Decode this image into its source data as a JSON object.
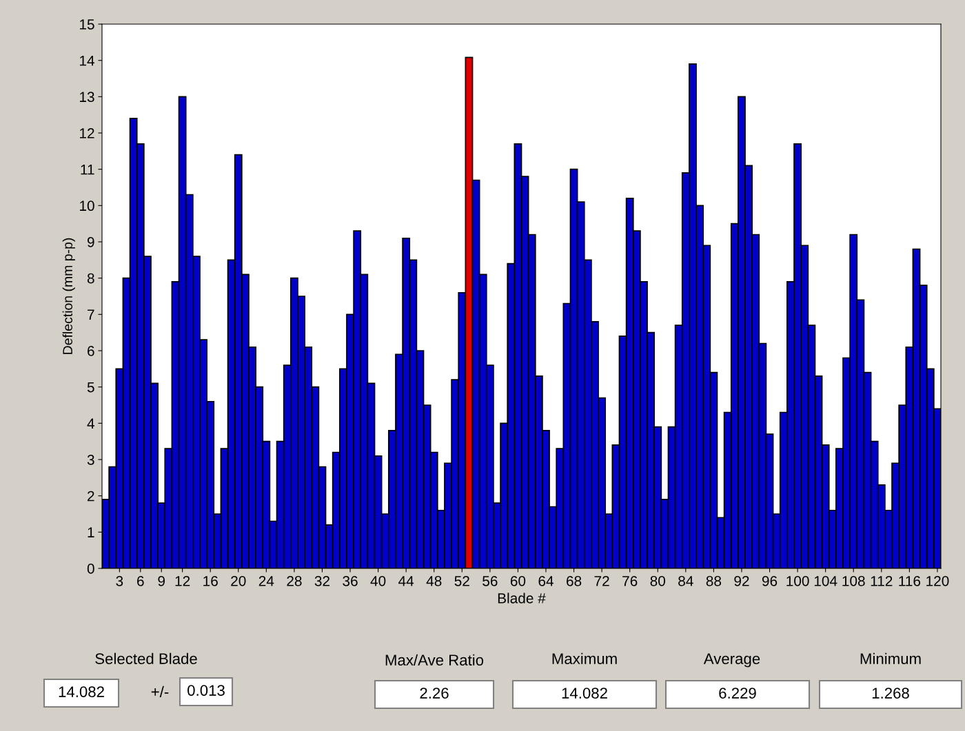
{
  "chart_data": {
    "type": "bar",
    "xlabel": "Blade #",
    "ylabel": "Deflection (mm p-p)",
    "x": [
      1,
      2,
      3,
      4,
      5,
      6,
      7,
      8,
      9,
      10,
      11,
      12,
      13,
      14,
      15,
      16,
      17,
      18,
      19,
      20,
      21,
      22,
      23,
      24,
      25,
      26,
      27,
      28,
      29,
      30,
      31,
      32,
      33,
      34,
      35,
      36,
      37,
      38,
      39,
      40,
      41,
      42,
      43,
      44,
      45,
      46,
      47,
      48,
      49,
      50,
      51,
      52,
      53,
      54,
      55,
      56,
      57,
      58,
      59,
      60,
      61,
      62,
      63,
      64,
      65,
      66,
      67,
      68,
      69,
      70,
      71,
      72,
      73,
      74,
      75,
      76,
      77,
      78,
      79,
      80,
      81,
      82,
      83,
      84,
      85,
      86,
      87,
      88,
      89,
      90,
      91,
      92,
      93,
      94,
      95,
      96,
      97,
      98,
      99,
      100,
      101,
      102,
      103,
      104,
      105,
      106,
      107,
      108,
      109,
      110,
      111,
      112,
      113,
      114,
      115,
      116,
      117,
      118,
      119,
      120
    ],
    "values": [
      1.9,
      2.8,
      5.5,
      8.0,
      12.4,
      11.7,
      8.6,
      5.1,
      1.8,
      3.3,
      7.9,
      13.0,
      10.3,
      8.6,
      6.3,
      4.6,
      1.5,
      3.3,
      8.5,
      11.4,
      8.1,
      6.1,
      5.0,
      3.5,
      1.3,
      3.5,
      5.6,
      8.0,
      7.5,
      6.1,
      5.0,
      2.8,
      1.2,
      3.2,
      5.5,
      7.0,
      9.3,
      8.1,
      5.1,
      3.1,
      1.5,
      3.8,
      5.9,
      9.1,
      8.5,
      6.0,
      4.5,
      3.2,
      1.6,
      2.9,
      5.2,
      7.6,
      14.08,
      10.7,
      8.1,
      5.6,
      1.8,
      4.0,
      8.4,
      11.7,
      10.8,
      9.2,
      5.3,
      3.8,
      1.7,
      3.3,
      7.3,
      11.0,
      10.1,
      8.5,
      6.8,
      4.7,
      1.5,
      3.4,
      6.4,
      10.2,
      9.3,
      7.9,
      6.5,
      3.9,
      1.9,
      3.9,
      6.7,
      10.9,
      13.9,
      10.0,
      8.9,
      5.4,
      1.4,
      4.3,
      9.5,
      13.0,
      11.1,
      9.2,
      6.2,
      3.7,
      1.5,
      4.3,
      7.9,
      11.7,
      8.9,
      6.7,
      5.3,
      3.4,
      1.6,
      3.3,
      5.8,
      9.2,
      7.4,
      5.4,
      3.5,
      2.3,
      1.6,
      2.9,
      4.5,
      6.1,
      8.8,
      7.8,
      5.5,
      4.4
    ],
    "colors": [
      "#0000c8",
      "#0000c8",
      "#0000c8",
      "#0000c8",
      "#0000c8",
      "#0000c8",
      "#0000c8",
      "#0000c8",
      "#0000c8",
      "#0000c8",
      "#0000c8",
      "#0000c8",
      "#0000c8",
      "#0000c8",
      "#0000c8",
      "#0000c8",
      "#0000c8",
      "#0000c8",
      "#0000c8",
      "#0000c8",
      "#0000c8",
      "#0000c8",
      "#0000c8",
      "#0000c8",
      "#0000c8",
      "#0000c8",
      "#0000c8",
      "#0000c8",
      "#0000c8",
      "#0000c8",
      "#0000c8",
      "#0000c8",
      "#0000c8",
      "#0000c8",
      "#0000c8",
      "#0000c8",
      "#0000c8",
      "#0000c8",
      "#0000c8",
      "#0000c8",
      "#0000c8",
      "#0000c8",
      "#0000c8",
      "#0000c8",
      "#0000c8",
      "#0000c8",
      "#0000c8",
      "#0000c8",
      "#0000c8",
      "#0000c8",
      "#0000c8",
      "#0000c8",
      "#e00000",
      "#0000c8",
      "#0000c8",
      "#0000c8",
      "#0000c8",
      "#0000c8",
      "#0000c8",
      "#0000c8",
      "#0000c8",
      "#0000c8",
      "#0000c8",
      "#0000c8",
      "#0000c8",
      "#0000c8",
      "#0000c8",
      "#0000c8",
      "#0000c8",
      "#0000c8",
      "#0000c8",
      "#0000c8",
      "#0000c8",
      "#0000c8",
      "#0000c8",
      "#0000c8",
      "#0000c8",
      "#0000c8",
      "#0000c8",
      "#0000c8",
      "#0000c8",
      "#0000c8",
      "#0000c8",
      "#0000c8",
      "#0000c8",
      "#0000c8",
      "#0000c8",
      "#0000c8",
      "#0000c8",
      "#0000c8",
      "#0000c8",
      "#0000c8",
      "#0000c8",
      "#0000c8",
      "#0000c8",
      "#0000c8",
      "#0000c8",
      "#0000c8",
      "#0000c8",
      "#0000c8",
      "#0000c8",
      "#0000c8",
      "#0000c8",
      "#0000c8",
      "#0000c8",
      "#0000c8",
      "#0000c8",
      "#0000c8",
      "#0000c8",
      "#0000c8",
      "#0000c8",
      "#0000c8",
      "#0000c8",
      "#0000c8",
      "#0000c8",
      "#0000c8",
      "#0000c8",
      "#0000c8",
      "#0000c8",
      "#0000c8"
    ],
    "xlim": [
      0.5,
      120.5
    ],
    "xticks": [
      3,
      6,
      9,
      12,
      16,
      20,
      24,
      28,
      32,
      36,
      40,
      44,
      48,
      52,
      56,
      60,
      64,
      68,
      72,
      76,
      80,
      84,
      88,
      92,
      96,
      100,
      104,
      108,
      112,
      116,
      120
    ],
    "ylim": [
      0,
      15
    ],
    "yticks": [
      0,
      1,
      2,
      3,
      4,
      5,
      6,
      7,
      8,
      9,
      10,
      11,
      12,
      13,
      14,
      15
    ],
    "grid": false,
    "annotations": [
      "Selected Blade",
      "14.082",
      "+/-",
      "0.013",
      "Max/Ave Ratio",
      "2.26",
      "Maximum",
      "14.082",
      "Average",
      "6.229",
      "Minimum",
      "1.268"
    ]
  }
}
